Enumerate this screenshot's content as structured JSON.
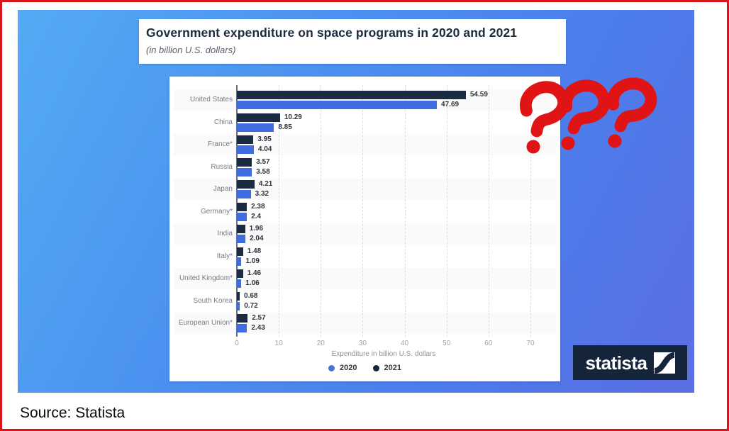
{
  "page": {
    "source_label": "Source: Statista",
    "annotation_marks": "???"
  },
  "chart": {
    "title": "Government expenditure on space programs in 2020 and 2021",
    "subtitle": "(in billion U.S. dollars)"
  },
  "chart_data": {
    "type": "bar",
    "orientation": "horizontal",
    "title": "Government expenditure on space programs in 2020 and 2021",
    "subtitle": "(in billion U.S. dollars)",
    "categories": [
      "United States",
      "China",
      "France*",
      "Russia",
      "Japan",
      "Germany*",
      "India",
      "Italy*",
      "United Kingdom*",
      "South Korea",
      "European Union*"
    ],
    "series": [
      {
        "name": "2021",
        "color": "#1a2b42",
        "values": [
          54.59,
          10.29,
          3.95,
          3.57,
          4.21,
          2.38,
          1.96,
          1.48,
          1.46,
          0.68,
          2.57
        ]
      },
      {
        "name": "2020",
        "color": "#3f6ce0",
        "values": [
          47.69,
          8.85,
          4.04,
          3.58,
          3.32,
          2.4,
          2.04,
          1.09,
          1.06,
          0.72,
          2.43
        ]
      }
    ],
    "bar_order_top_to_bottom": [
      "2021",
      "2020"
    ],
    "xlabel": "Expenditure in billion U.S. dollars",
    "xticks": [
      0,
      10,
      20,
      30,
      40,
      50,
      60,
      70
    ],
    "xlim": [
      0,
      70
    ],
    "legend": [
      {
        "label": "2020",
        "color": "#4a72d8"
      },
      {
        "label": "2021",
        "color": "#1b2638"
      }
    ],
    "legend_position": "bottom",
    "grid": "vertical-dashed"
  },
  "branding": {
    "logo_text": "statista"
  },
  "colors": {
    "frame_border": "#d9161a",
    "annotation_red": "#e01414",
    "bar_2021": "#1a2b42",
    "bar_2020": "#3f6ce0",
    "background_gradient_start": "#55aaf5",
    "background_gradient_end": "#5b6ee2"
  }
}
